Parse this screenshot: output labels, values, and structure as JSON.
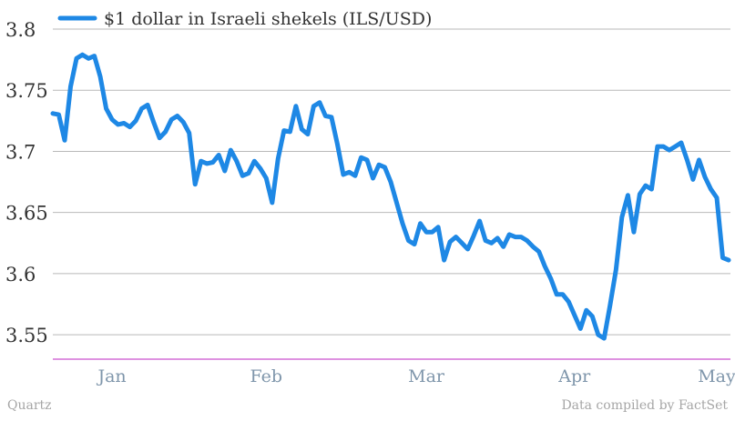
{
  "source_label": "Quartz",
  "credit_label": "Data compiled by FactSet",
  "chart_data": {
    "type": "line",
    "legend": "$1 dollar in Israeli shekels (ILS/USD)",
    "legend_position": "top-left",
    "grid": true,
    "series": [
      {
        "name": "$1 dollar in Israeli shekels (ILS/USD)",
        "color": "#1e88e5",
        "values": [
          3.731,
          3.73,
          3.709,
          3.753,
          3.776,
          3.779,
          3.776,
          3.778,
          3.761,
          3.735,
          3.726,
          3.722,
          3.723,
          3.72,
          3.725,
          3.735,
          3.738,
          3.724,
          3.711,
          3.716,
          3.726,
          3.729,
          3.724,
          3.715,
          3.673,
          3.692,
          3.69,
          3.691,
          3.697,
          3.684,
          3.701,
          3.692,
          3.68,
          3.682,
          3.692,
          3.686,
          3.678,
          3.658,
          3.694,
          3.717,
          3.716,
          3.737,
          3.718,
          3.714,
          3.737,
          3.74,
          3.729,
          3.728,
          3.706,
          3.681,
          3.683,
          3.68,
          3.695,
          3.693,
          3.678,
          3.689,
          3.687,
          3.675,
          3.658,
          3.641,
          3.627,
          3.624,
          3.641,
          3.634,
          3.634,
          3.638,
          3.611,
          3.626,
          3.63,
          3.625,
          3.62,
          3.631,
          3.643,
          3.627,
          3.625,
          3.629,
          3.622,
          3.632,
          3.63,
          3.63,
          3.627,
          3.622,
          3.618,
          3.606,
          3.596,
          3.583,
          3.583,
          3.577,
          3.566,
          3.555,
          3.57,
          3.565,
          3.55,
          3.547,
          3.574,
          3.603,
          3.646,
          3.664,
          3.634,
          3.665,
          3.672,
          3.669,
          3.704,
          3.704,
          3.701,
          3.704,
          3.707,
          3.693,
          3.677,
          3.693,
          3.679,
          3.669,
          3.662,
          3.613,
          3.611
        ]
      }
    ],
    "x_ticks": [
      "Jan",
      "Feb",
      "Mar",
      "Apr",
      "May"
    ],
    "x_tick_index": [
      10,
      36,
      63,
      88,
      112
    ],
    "y_ticks": [
      3.8,
      3.75,
      3.7,
      3.65,
      3.6,
      3.55
    ],
    "y_tick_labels": [
      "3.8",
      "3.75",
      "3.7",
      "3.65",
      "3.6",
      "3.55"
    ],
    "ylim": [
      3.53,
      3.8
    ]
  }
}
